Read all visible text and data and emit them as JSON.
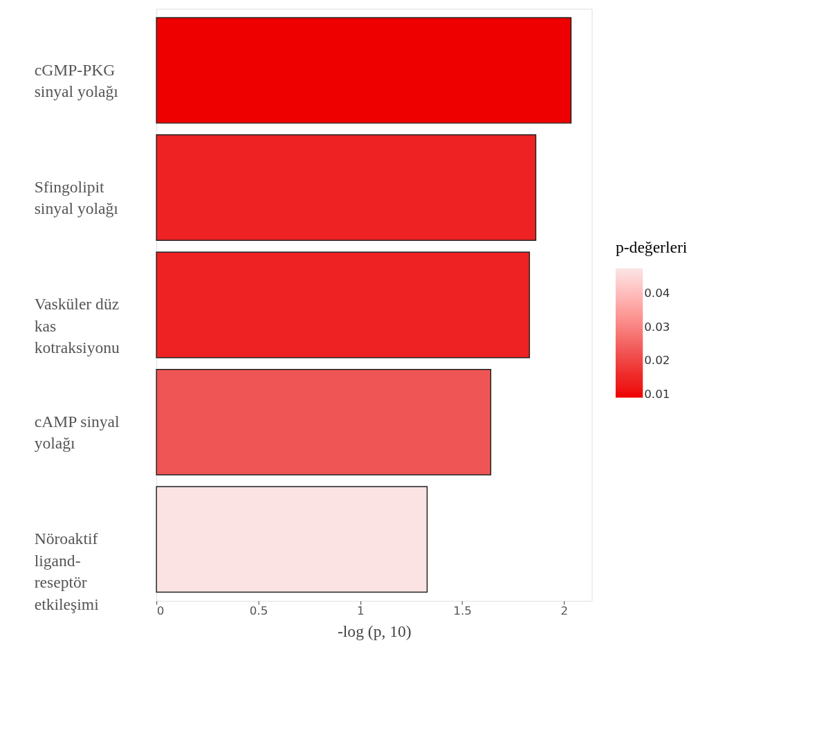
{
  "chart_data": {
    "type": "bar",
    "orientation": "horizontal",
    "categories": [
      "cGMP-PKG sinyal yolağı",
      "Sfingolipit sinyal yolağı",
      "Vasküler düz kas kotraksiyonu",
      "cAMP sinyal yolağı",
      "Nöroaktif ligand-reseptör etkileşimi"
    ],
    "values": [
      2.034,
      1.861,
      1.83,
      1.64,
      1.328
    ],
    "cvalues": [
      0.0092,
      0.0138,
      0.0148,
      0.0229,
      0.047
    ],
    "colors": [
      "#ee0000",
      "#ee2222",
      "#ee2222",
      "#f05555",
      "#fbe3e3"
    ],
    "xlabel": "-log (p, 10)",
    "clabel": "p-değerleri",
    "xlim": [
      0,
      2.136
    ],
    "xticks": [
      0,
      0.5,
      1,
      1.5,
      2
    ],
    "cticks": [
      0.01,
      0.02,
      0.03,
      0.04
    ],
    "clim": [
      0.009,
      0.0475
    ],
    "grid": false
  }
}
